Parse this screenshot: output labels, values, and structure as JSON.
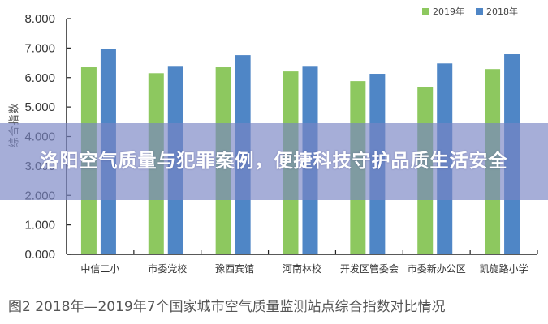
{
  "chart_data": {
    "type": "bar",
    "title": "图2 2018年—2019年7个国家城市空气质量监测站点综合指数对比情况",
    "xlabel": "",
    "ylabel": "综合指数",
    "ylim": [
      0,
      8
    ],
    "yticks": [
      "0.000",
      "1.000",
      "2.000",
      "3.000",
      "4.000",
      "5.000",
      "6.000",
      "7.000",
      "8.000"
    ],
    "grid": false,
    "legend_position": "top-right",
    "categories": [
      "中信二小",
      "市委党校",
      "豫西宾馆",
      "河南林校",
      "开发区管委会",
      "市委新办公区",
      "凯旋路小学"
    ],
    "series": [
      {
        "name": "2019年",
        "color": "#8dc85f",
        "values": [
          6.35,
          6.15,
          6.35,
          6.21,
          5.88,
          5.69,
          6.29
        ]
      },
      {
        "name": "2018年",
        "color": "#4f86c6",
        "values": [
          6.97,
          6.37,
          6.76,
          6.37,
          6.13,
          6.48,
          6.79
        ]
      }
    ]
  },
  "legend": [
    {
      "label": "2019年",
      "color": "#8dc85f"
    },
    {
      "label": "2018年",
      "color": "#4f86c6"
    }
  ],
  "caption": "图2 2018年—2019年7个国家城市空气质量监测站点综合指数对比情况",
  "banner": {
    "text": "洛阳空气质量与犯罪案例，便捷科技守护品质生活安全"
  }
}
